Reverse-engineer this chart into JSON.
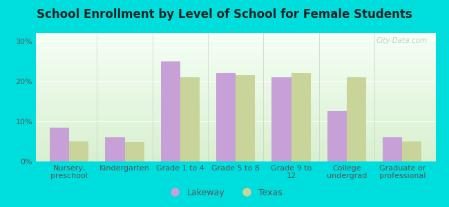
{
  "title": "School Enrollment by Level of School for Female Students",
  "categories": [
    "Nursery,\npreschool",
    "Kindergarten",
    "Grade 1 to 4",
    "Grade 5 to 8",
    "Grade 9 to\n12",
    "College\nundergrad",
    "Graduate or\nprofessional"
  ],
  "lakeway_values": [
    8.5,
    6.0,
    25.0,
    22.0,
    21.0,
    12.5,
    6.0
  ],
  "texas_values": [
    5.0,
    4.8,
    21.0,
    21.5,
    22.0,
    21.0,
    5.0
  ],
  "lakeway_color": "#c8a0d8",
  "texas_color": "#c8d49a",
  "background_outer": "#00dddd",
  "background_inner_top": "#f5fff5",
  "background_inner_bottom": "#d8f0d0",
  "ylim": [
    0,
    32
  ],
  "yticks": [
    0,
    10,
    20,
    30
  ],
  "ytick_labels": [
    "0%",
    "10%",
    "20%",
    "30%"
  ],
  "bar_width": 0.35,
  "legend_labels": [
    "Lakeway",
    "Texas"
  ],
  "title_fontsize": 12,
  "tick_fontsize": 8,
  "legend_fontsize": 9,
  "watermark_text": "City-Data.com"
}
